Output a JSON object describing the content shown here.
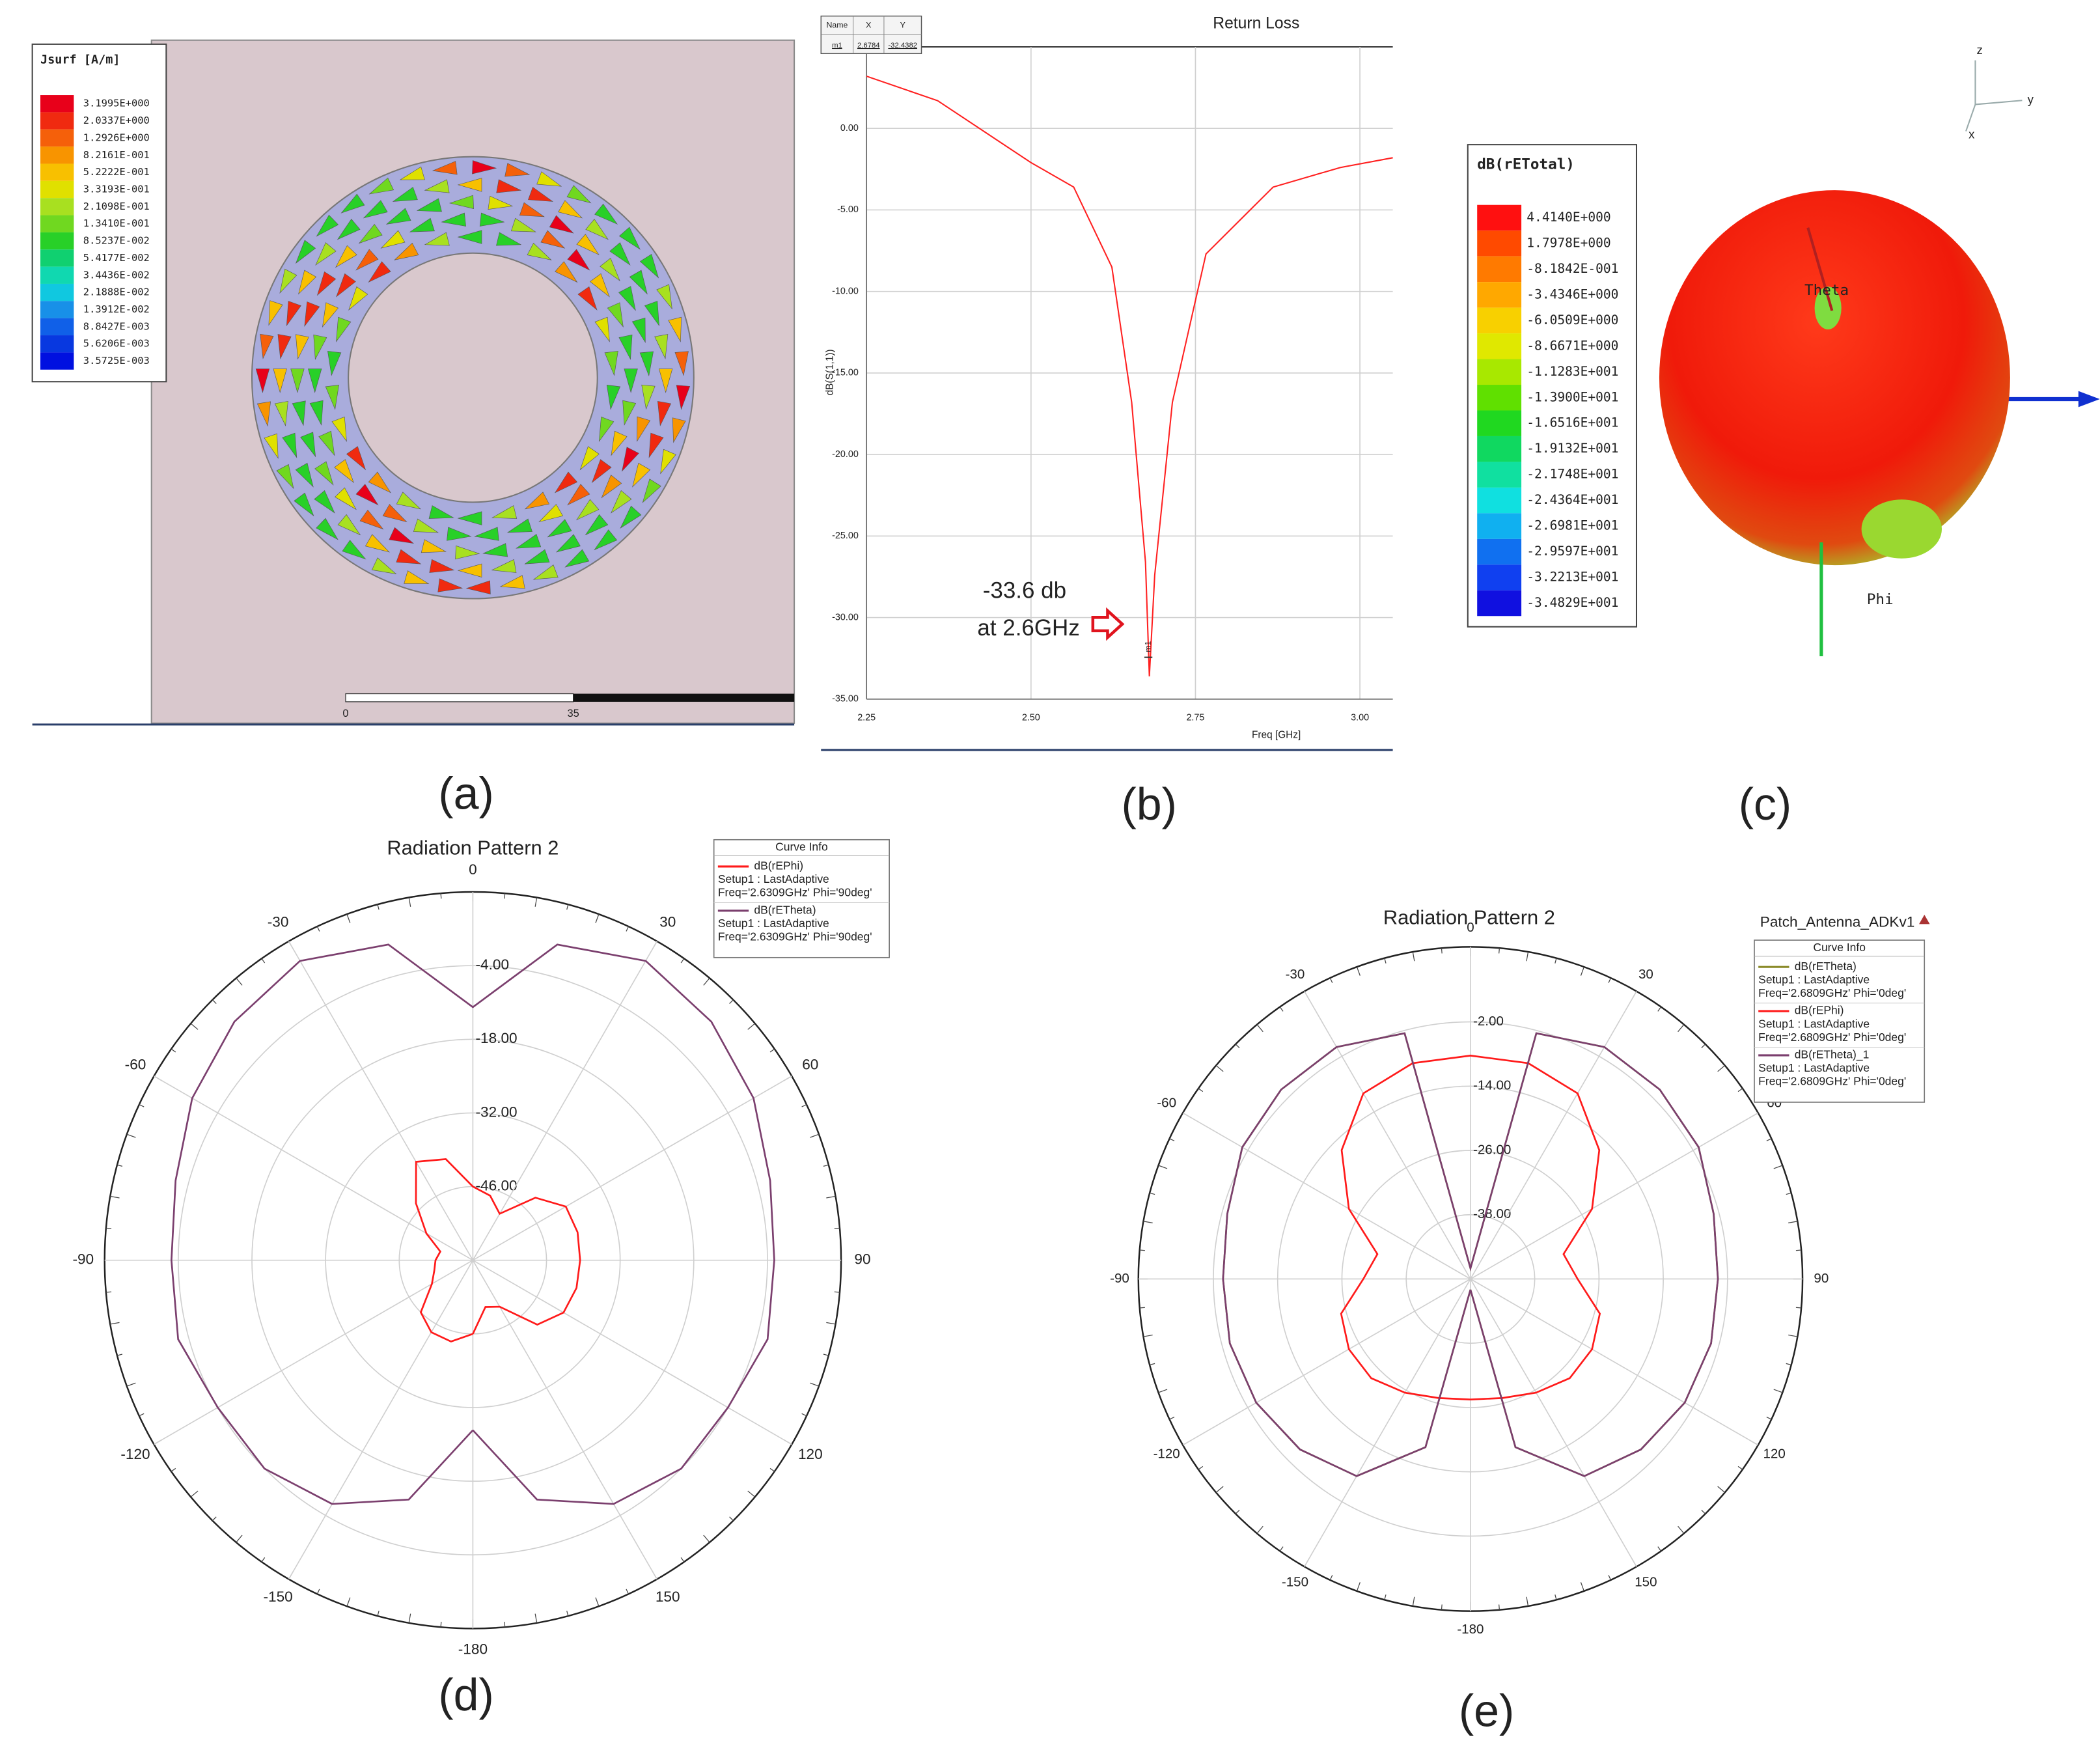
{
  "chart_data": [
    {
      "type": "field",
      "caption": "(a)",
      "colorbar": {
        "title": "Jsurf [A/m]",
        "labels": [
          "3.1995E+000",
          "2.0337E+000",
          "1.2926E+000",
          "8.2161E-001",
          "5.2222E-001",
          "3.3193E-001",
          "2.1098E-001",
          "1.3410E-001",
          "8.5237E-002",
          "5.4177E-002",
          "3.4436E-002",
          "2.1888E-002",
          "1.3912E-002",
          "8.8427E-003",
          "5.6206E-003",
          "3.5725E-003"
        ],
        "colors": [
          "#e8001a",
          "#f02a10",
          "#f5600a",
          "#f89400",
          "#f8c000",
          "#e0e000",
          "#a8e020",
          "#70d820",
          "#28d028",
          "#10d070",
          "#10d8b0",
          "#10c8e0",
          "#1890e8",
          "#1060e8",
          "#0838e0",
          "#0010e0"
        ]
      },
      "scale_labels": [
        "0",
        "35"
      ]
    },
    {
      "type": "line",
      "caption": "(b)",
      "title": "Return Loss",
      "xlabel": "Freq [GHz]",
      "ylabel": "dB(S(1,1))",
      "x": [
        2.25,
        2.358,
        2.5,
        2.565,
        2.623,
        2.653,
        2.674,
        2.68,
        2.688,
        2.715,
        2.766,
        2.868,
        2.97,
        3.05
      ],
      "values": [
        3.2,
        1.7,
        -2.1,
        -3.6,
        -8.5,
        -16.8,
        -26.6,
        -33.6,
        -27.4,
        -16.8,
        -7.7,
        -3.6,
        -2.4,
        -1.8
      ],
      "color": "#ff2020",
      "xlim": [
        2.25,
        3.05
      ],
      "ylim": [
        -35,
        5
      ],
      "xticks": [
        2.25,
        {
          "value": 2.5,
          "label": "2.50"
        },
        2.75,
        {
          "value": 3,
          "label": "3.00"
        }
      ],
      "yticks": [
        {
          "value": 0,
          "label": "0.00"
        },
        {
          "value": -5,
          "label": "-5.00"
        },
        {
          "value": -10,
          "label": "-10.00"
        },
        {
          "value": -15,
          "label": "-15.00"
        },
        {
          "value": -20,
          "label": "-20.00"
        },
        {
          "value": -25,
          "label": "-25.00"
        },
        {
          "value": -30,
          "label": "-30.00"
        },
        {
          "value": -35,
          "label": "-35.00"
        }
      ],
      "grid": true,
      "marker_table": {
        "header": [
          "Name",
          "X",
          "Y"
        ],
        "row": [
          "m1",
          2.6784,
          -32.4382
        ]
      },
      "annotation": [
        "-33.6 db",
        "at 2.6GHz"
      ]
    },
    {
      "type": "pattern3d",
      "caption": "(c)",
      "colorbar": {
        "title": "dB(rETotal)",
        "labels": [
          "4.4140E+000",
          "1.7978E+000",
          "-8.1842E-001",
          "-3.4346E+000",
          "-6.0509E+000",
          "-8.6671E+000",
          "-1.1283E+001",
          "-1.3900E+001",
          "-1.6516E+001",
          "-1.9132E+001",
          "-2.1748E+001",
          "-2.4364E+001",
          "-2.6981E+001",
          "-2.9597E+001",
          "-3.2213E+001",
          "-3.4829E+001"
        ],
        "colors": [
          "#ff1010",
          "#ff4a00",
          "#ff7a00",
          "#ffa800",
          "#f8d000",
          "#e0e800",
          "#a8e800",
          "#60e000",
          "#20d820",
          "#10d860",
          "#10e0a0",
          "#10e0e0",
          "#10b0f0",
          "#1070f0",
          "#1040f0",
          "#1010e0"
        ]
      },
      "labels": [
        "Theta",
        "Phi"
      ],
      "axes": [
        "z",
        "y",
        "x"
      ]
    },
    {
      "type": "polar",
      "caption": "(d)",
      "title": "Radiation Pattern 2",
      "legend_title": "Curve Info",
      "theta": [
        -180,
        -165,
        -150,
        -135,
        -120,
        -105,
        -90,
        -75,
        -60,
        -45,
        -30,
        -15,
        0,
        15,
        30,
        45,
        60,
        75,
        90,
        105,
        120,
        135,
        150,
        165,
        180
      ],
      "rlim": [
        -60,
        10
      ],
      "rticks": [
        {
          "value": -4,
          "label": "-4.00"
        },
        {
          "value": -18,
          "label": "-18.00"
        },
        {
          "value": -32,
          "label": "-32.00"
        },
        {
          "value": -46,
          "label": "-46.00"
        }
      ],
      "thetaticks": [
        0,
        30,
        60,
        90,
        120,
        150,
        -180,
        -150,
        -120,
        -90,
        -60,
        -30
      ],
      "series": [
        {
          "name": "dB(rEPhi)",
          "setup": "Setup1 : LastAdaptive",
          "freq": "Freq='2.6309GHz' Phi='90deg'",
          "color": "#ff1a1a",
          "values": [
            -46,
            -44,
            -44.2,
            -46,
            -51,
            -52.4,
            -52.9,
            -53.6,
            -49.8,
            -44.7,
            -38.4,
            -40.1,
            -46,
            -47.3,
            -49.8,
            -43.2,
            -39.6,
            -39.4,
            -39.6,
            -39.6,
            -40.1,
            -42.7,
            -49.8,
            -50.8,
            -46
          ]
        },
        {
          "name": "dB(rETheta)",
          "setup": "Setup1 : LastAdaptive",
          "freq": "Freq='2.6309GHz' Phi='90deg'",
          "color": "#7b3f6e",
          "values": [
            -27.7,
            -12.9,
            -6.5,
            -4,
            -4,
            -2,
            -2.7,
            -1.5,
            1.6,
            4.1,
            5.7,
            2.1,
            -11.9,
            2.1,
            5.7,
            4.1,
            1.6,
            -1.5,
            -2.7,
            -2,
            -4,
            -4,
            -6.5,
            -12.9,
            -27.7
          ]
        }
      ]
    },
    {
      "type": "polar",
      "caption": "(e)",
      "title": "Radiation Pattern 2",
      "subtitle": "Patch_Antenna_ADKv1",
      "legend_title": "Curve Info",
      "theta": [
        -180,
        -165,
        -150,
        -135,
        -120,
        -105,
        -90,
        -75,
        -60,
        -45,
        -30,
        -15,
        0,
        15,
        30,
        45,
        60,
        75,
        90,
        105,
        120,
        135,
        150,
        165,
        180
      ],
      "rlim": [
        -50,
        12
      ],
      "rticks": [
        {
          "value": -2,
          "label": "-2.00"
        },
        {
          "value": -14,
          "label": "-14.00"
        },
        {
          "value": -26,
          "label": "-26.00"
        },
        {
          "value": -38,
          "label": "-38.00"
        }
      ],
      "thetaticks": [
        0,
        30,
        60,
        90,
        120,
        150,
        -180,
        -150,
        -120,
        -90,
        -60,
        -30
      ],
      "series": [
        {
          "name": "dB(rETheta)",
          "setup": "Setup1 : LastAdaptive",
          "freq": "Freq='2.6809GHz' Phi='0deg'",
          "color": "#8b8b2a",
          "values": [
            -48,
            -17.5,
            -7.5,
            -5,
            -3.8,
            -3.5,
            -3.8,
            -3,
            -0.8,
            0,
            0,
            -2.5,
            -48,
            -2.5,
            0,
            0,
            -0.8,
            -3,
            -3.8,
            -3.5,
            -3.8,
            -5,
            -7.5,
            -17.5,
            -48
          ]
        },
        {
          "name": "dB(rEPhi)",
          "setup": "Setup1 : LastAdaptive",
          "freq": "Freq='2.6809GHz' Phi='0deg'",
          "color": "#ff1a1a",
          "values": [
            -27.5,
            -27,
            -25.5,
            -23.8,
            -23.8,
            -25,
            -30,
            -32,
            -23.8,
            -16,
            -10,
            -8.3,
            -8.3,
            -8.3,
            -10,
            -16,
            -23.8,
            -32,
            -30,
            -25,
            -23.8,
            -23.8,
            -25.5,
            -27,
            -27.5
          ]
        },
        {
          "name": "dB(rETheta)_1",
          "setup": "Setup1 : LastAdaptive",
          "freq": "Freq='2.6809GHz' Phi='0deg'",
          "color": "#7b3f6e",
          "values": [
            -48,
            -17.5,
            -7.5,
            -5,
            -3.8,
            -3.5,
            -3.8,
            -3,
            -0.8,
            0,
            0,
            -2.5,
            -48,
            -2.5,
            0,
            0,
            -0.8,
            -3,
            -3.8,
            -3.5,
            -3.8,
            -5,
            -7.5,
            -17.5,
            -48
          ]
        }
      ]
    }
  ]
}
